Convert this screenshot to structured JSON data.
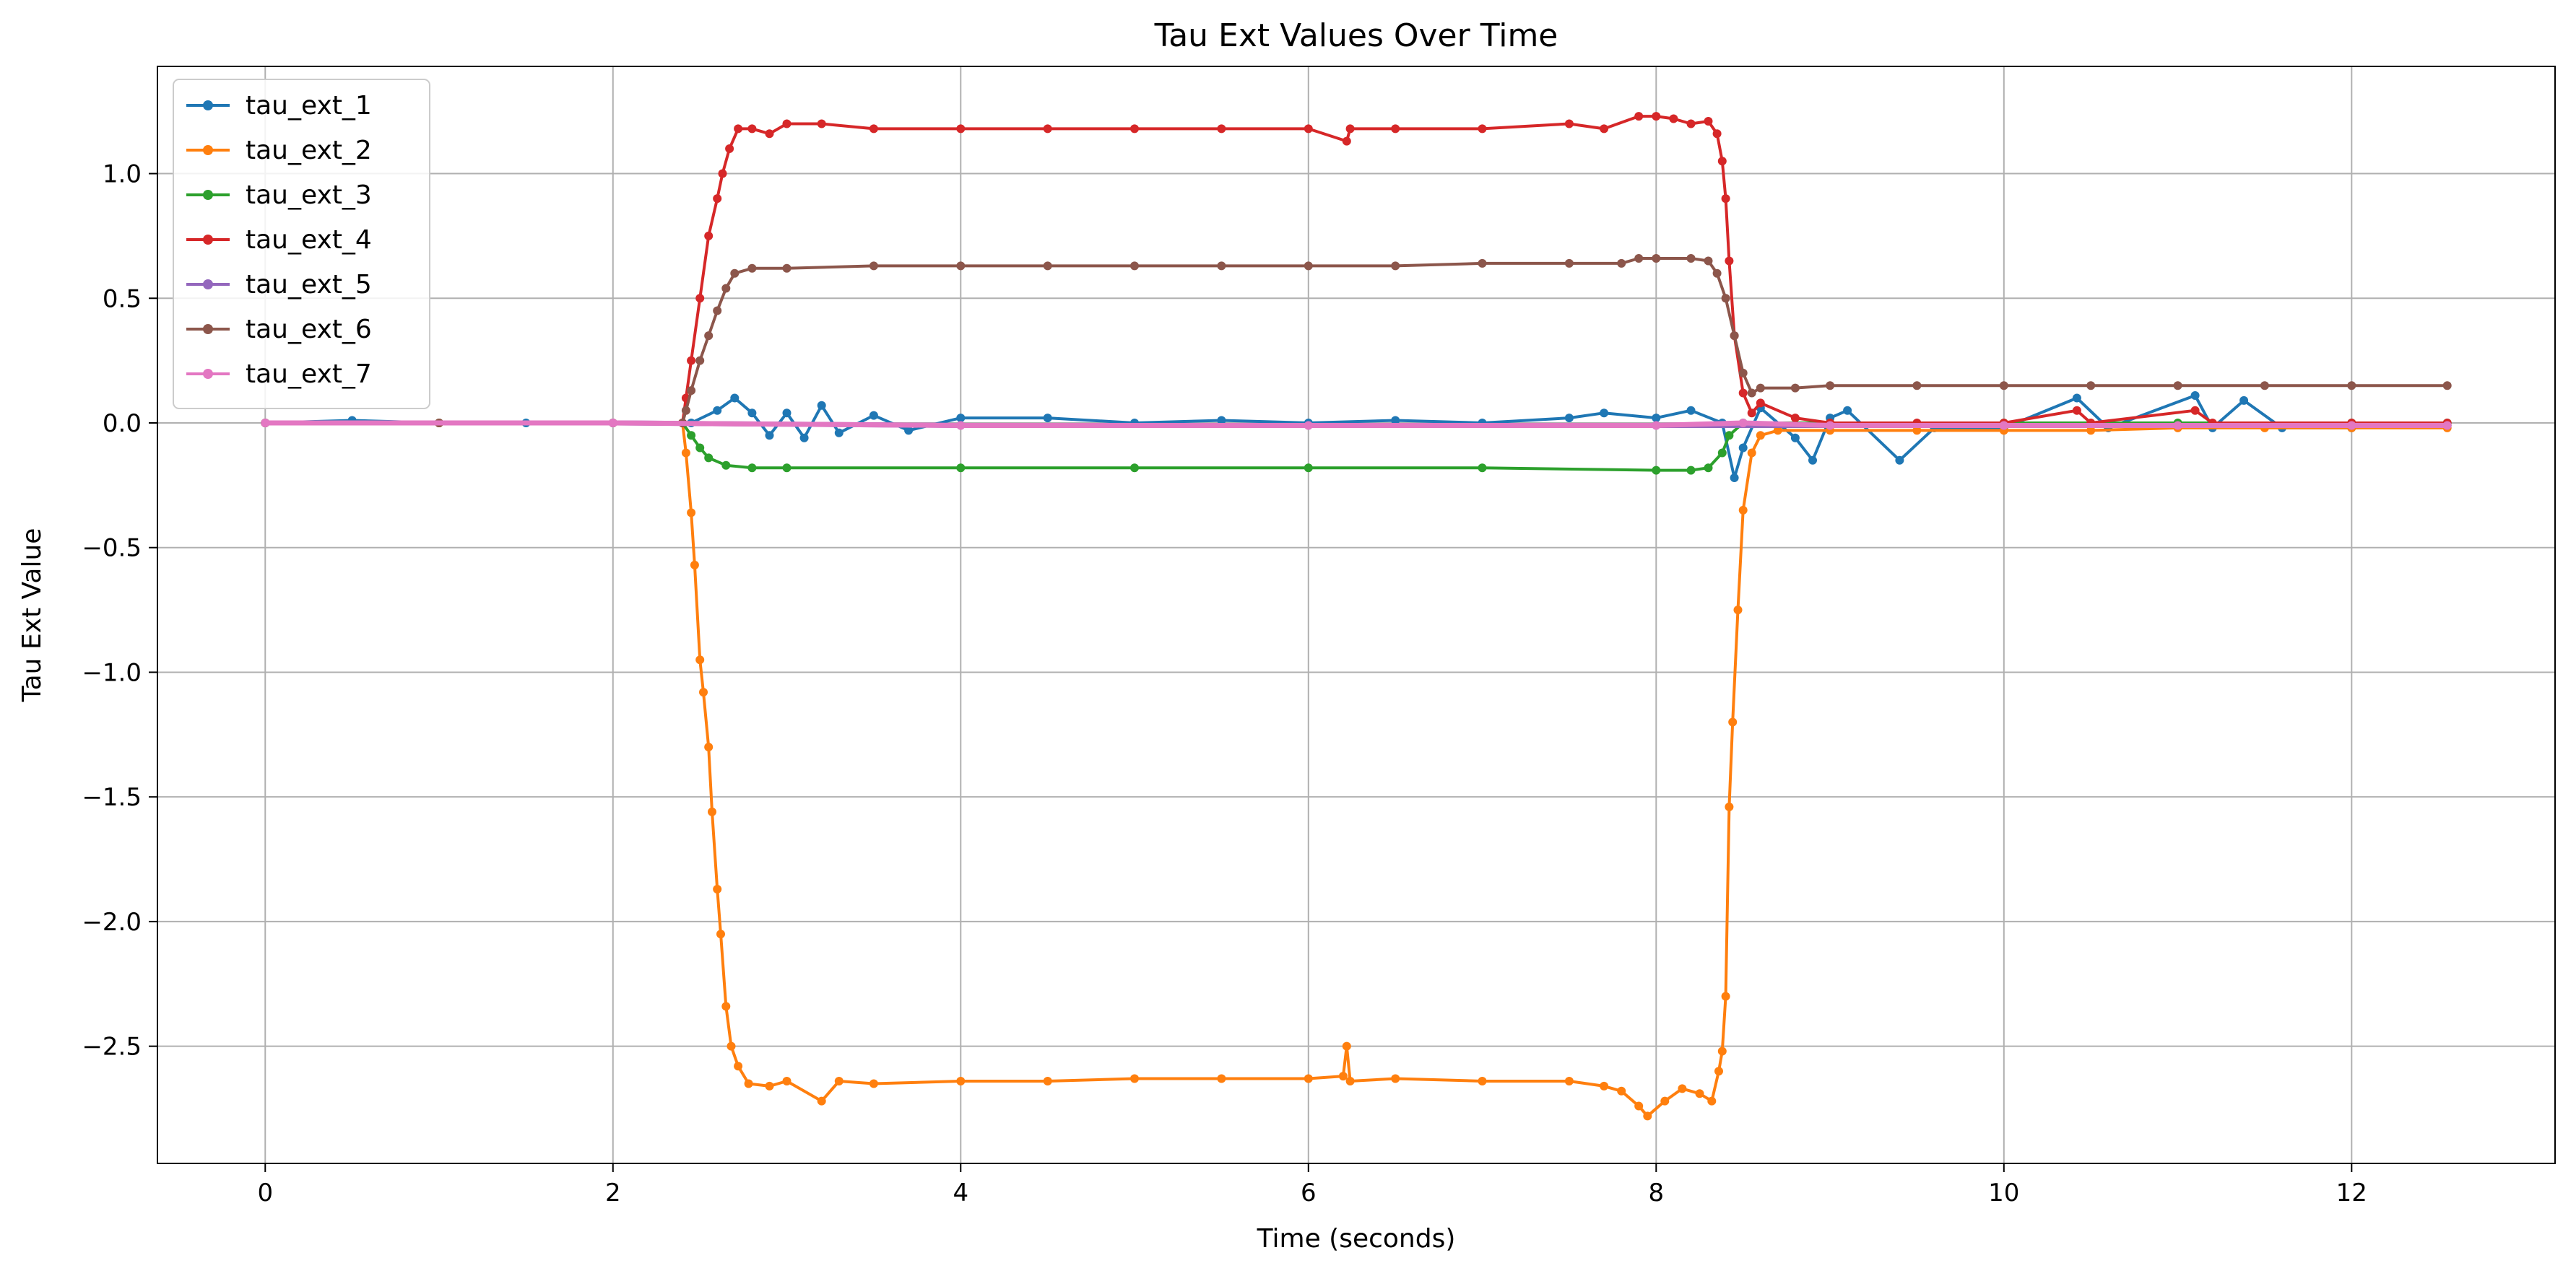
{
  "chart_data": {
    "type": "line",
    "title": "Tau Ext Values Over Time",
    "xlabel": "Time (seconds)",
    "ylabel": "Tau Ext Value",
    "xlim": [
      -0.62,
      13.17
    ],
    "ylim": [
      -2.97,
      1.43
    ],
    "x_ticks": [
      0,
      2,
      4,
      6,
      8,
      10,
      12
    ],
    "x_tick_labels": [
      "0",
      "2",
      "4",
      "6",
      "8",
      "10",
      "12"
    ],
    "y_ticks": [
      1.0,
      0.5,
      0.0,
      -0.5,
      -1.0,
      -1.5,
      -2.0,
      -2.5
    ],
    "y_tick_labels": [
      "1.0",
      "0.5",
      "0.0",
      "−0.5",
      "−1.0",
      "−1.5",
      "−2.0",
      "−2.5"
    ],
    "grid": true,
    "legend_position": "top-left",
    "series": [
      {
        "name": "tau_ext_1",
        "color": "#1f77b4",
        "points": [
          [
            0,
            0
          ],
          [
            0.5,
            0.01
          ],
          [
            1,
            0.0
          ],
          [
            1.5,
            0.0
          ],
          [
            2,
            0.0
          ],
          [
            2.45,
            0.0
          ],
          [
            2.6,
            0.05
          ],
          [
            2.7,
            0.1
          ],
          [
            2.8,
            0.04
          ],
          [
            2.9,
            -0.05
          ],
          [
            3.0,
            0.04
          ],
          [
            3.1,
            -0.06
          ],
          [
            3.2,
            0.07
          ],
          [
            3.3,
            -0.04
          ],
          [
            3.5,
            0.03
          ],
          [
            3.7,
            -0.03
          ],
          [
            4,
            0.02
          ],
          [
            4.5,
            0.02
          ],
          [
            5,
            0.0
          ],
          [
            5.5,
            0.01
          ],
          [
            6,
            0.0
          ],
          [
            6.5,
            0.01
          ],
          [
            7,
            0.0
          ],
          [
            7.5,
            0.02
          ],
          [
            7.7,
            0.04
          ],
          [
            8,
            0.02
          ],
          [
            8.2,
            0.05
          ],
          [
            8.38,
            0.0
          ],
          [
            8.45,
            -0.22
          ],
          [
            8.5,
            -0.1
          ],
          [
            8.6,
            0.06
          ],
          [
            8.8,
            -0.06
          ],
          [
            8.9,
            -0.15
          ],
          [
            9.0,
            0.02
          ],
          [
            9.1,
            0.05
          ],
          [
            9.4,
            -0.15
          ],
          [
            9.6,
            -0.02
          ],
          [
            10,
            -0.02
          ],
          [
            10.42,
            0.1
          ],
          [
            10.6,
            -0.02
          ],
          [
            11.1,
            0.11
          ],
          [
            11.2,
            -0.02
          ],
          [
            11.38,
            0.09
          ],
          [
            11.6,
            -0.02
          ],
          [
            12,
            -0.02
          ],
          [
            12.55,
            -0.01
          ]
        ]
      },
      {
        "name": "tau_ext_2",
        "color": "#ff7f0e",
        "points": [
          [
            0,
            0
          ],
          [
            1,
            0.0
          ],
          [
            2,
            0.0
          ],
          [
            2.4,
            0.0
          ],
          [
            2.42,
            -0.12
          ],
          [
            2.45,
            -0.36
          ],
          [
            2.47,
            -0.57
          ],
          [
            2.5,
            -0.95
          ],
          [
            2.52,
            -1.08
          ],
          [
            2.55,
            -1.3
          ],
          [
            2.57,
            -1.56
          ],
          [
            2.6,
            -1.87
          ],
          [
            2.62,
            -2.05
          ],
          [
            2.65,
            -2.34
          ],
          [
            2.68,
            -2.5
          ],
          [
            2.72,
            -2.58
          ],
          [
            2.78,
            -2.65
          ],
          [
            2.9,
            -2.66
          ],
          [
            3.0,
            -2.64
          ],
          [
            3.2,
            -2.72
          ],
          [
            3.3,
            -2.64
          ],
          [
            3.5,
            -2.65
          ],
          [
            4.0,
            -2.64
          ],
          [
            4.5,
            -2.64
          ],
          [
            5.0,
            -2.63
          ],
          [
            5.5,
            -2.63
          ],
          [
            6.0,
            -2.63
          ],
          [
            6.2,
            -2.62
          ],
          [
            6.22,
            -2.5
          ],
          [
            6.24,
            -2.64
          ],
          [
            6.5,
            -2.63
          ],
          [
            7.0,
            -2.64
          ],
          [
            7.5,
            -2.64
          ],
          [
            7.7,
            -2.66
          ],
          [
            7.8,
            -2.68
          ],
          [
            7.9,
            -2.74
          ],
          [
            7.95,
            -2.78
          ],
          [
            8.05,
            -2.72
          ],
          [
            8.15,
            -2.67
          ],
          [
            8.25,
            -2.69
          ],
          [
            8.32,
            -2.72
          ],
          [
            8.36,
            -2.6
          ],
          [
            8.38,
            -2.52
          ],
          [
            8.4,
            -2.3
          ],
          [
            8.42,
            -1.54
          ],
          [
            8.44,
            -1.2
          ],
          [
            8.47,
            -0.75
          ],
          [
            8.5,
            -0.35
          ],
          [
            8.55,
            -0.12
          ],
          [
            8.6,
            -0.05
          ],
          [
            8.7,
            -0.03
          ],
          [
            9.0,
            -0.03
          ],
          [
            9.5,
            -0.03
          ],
          [
            10.0,
            -0.03
          ],
          [
            10.5,
            -0.03
          ],
          [
            11.0,
            -0.02
          ],
          [
            11.5,
            -0.02
          ],
          [
            12.0,
            -0.02
          ],
          [
            12.55,
            -0.02
          ]
        ]
      },
      {
        "name": "tau_ext_3",
        "color": "#2ca02c",
        "points": [
          [
            0,
            0
          ],
          [
            1,
            0.0
          ],
          [
            2,
            0.0
          ],
          [
            2.4,
            0.0
          ],
          [
            2.45,
            -0.05
          ],
          [
            2.5,
            -0.1
          ],
          [
            2.55,
            -0.14
          ],
          [
            2.65,
            -0.17
          ],
          [
            2.8,
            -0.18
          ],
          [
            3.0,
            -0.18
          ],
          [
            4,
            -0.18
          ],
          [
            5,
            -0.18
          ],
          [
            6,
            -0.18
          ],
          [
            7,
            -0.18
          ],
          [
            8.0,
            -0.19
          ],
          [
            8.2,
            -0.19
          ],
          [
            8.3,
            -0.18
          ],
          [
            8.38,
            -0.12
          ],
          [
            8.42,
            -0.05
          ],
          [
            8.5,
            0.0
          ],
          [
            9,
            0.0
          ],
          [
            10,
            0.0
          ],
          [
            11,
            0.0
          ],
          [
            12,
            0.0
          ],
          [
            12.55,
            0.0
          ]
        ]
      },
      {
        "name": "tau_ext_4",
        "color": "#d62728",
        "points": [
          [
            0,
            0
          ],
          [
            1,
            0.0
          ],
          [
            2,
            0.0
          ],
          [
            2.4,
            0.0
          ],
          [
            2.42,
            0.1
          ],
          [
            2.45,
            0.25
          ],
          [
            2.5,
            0.5
          ],
          [
            2.55,
            0.75
          ],
          [
            2.6,
            0.9
          ],
          [
            2.63,
            1.0
          ],
          [
            2.67,
            1.1
          ],
          [
            2.72,
            1.18
          ],
          [
            2.8,
            1.18
          ],
          [
            2.9,
            1.16
          ],
          [
            3.0,
            1.2
          ],
          [
            3.2,
            1.2
          ],
          [
            3.5,
            1.18
          ],
          [
            4,
            1.18
          ],
          [
            4.5,
            1.18
          ],
          [
            5,
            1.18
          ],
          [
            5.5,
            1.18
          ],
          [
            6,
            1.18
          ],
          [
            6.22,
            1.13
          ],
          [
            6.24,
            1.18
          ],
          [
            6.5,
            1.18
          ],
          [
            7,
            1.18
          ],
          [
            7.5,
            1.2
          ],
          [
            7.7,
            1.18
          ],
          [
            7.9,
            1.23
          ],
          [
            8.0,
            1.23
          ],
          [
            8.1,
            1.22
          ],
          [
            8.2,
            1.2
          ],
          [
            8.3,
            1.21
          ],
          [
            8.35,
            1.16
          ],
          [
            8.38,
            1.05
          ],
          [
            8.4,
            0.9
          ],
          [
            8.42,
            0.65
          ],
          [
            8.45,
            0.35
          ],
          [
            8.5,
            0.12
          ],
          [
            8.55,
            0.04
          ],
          [
            8.6,
            0.08
          ],
          [
            8.8,
            0.02
          ],
          [
            9.0,
            0.0
          ],
          [
            9.5,
            0.0
          ],
          [
            10,
            0.0
          ],
          [
            10.42,
            0.05
          ],
          [
            10.5,
            0.0
          ],
          [
            11.1,
            0.05
          ],
          [
            11.2,
            0.0
          ],
          [
            12,
            0.0
          ],
          [
            12.55,
            0.0
          ]
        ]
      },
      {
        "name": "tau_ext_5",
        "color": "#9467bd",
        "points": [
          [
            0,
            0
          ],
          [
            2,
            0.0
          ],
          [
            4,
            -0.01
          ],
          [
            6,
            -0.01
          ],
          [
            8,
            -0.01
          ],
          [
            10,
            -0.01
          ],
          [
            12,
            -0.01
          ],
          [
            12.55,
            -0.01
          ]
        ]
      },
      {
        "name": "tau_ext_6",
        "color": "#8c564b",
        "points": [
          [
            0,
            0
          ],
          [
            1,
            0.0
          ],
          [
            2,
            0.0
          ],
          [
            2.4,
            0.0
          ],
          [
            2.42,
            0.05
          ],
          [
            2.45,
            0.13
          ],
          [
            2.5,
            0.25
          ],
          [
            2.55,
            0.35
          ],
          [
            2.6,
            0.45
          ],
          [
            2.65,
            0.54
          ],
          [
            2.7,
            0.6
          ],
          [
            2.8,
            0.62
          ],
          [
            3.0,
            0.62
          ],
          [
            3.5,
            0.63
          ],
          [
            4,
            0.63
          ],
          [
            4.5,
            0.63
          ],
          [
            5,
            0.63
          ],
          [
            5.5,
            0.63
          ],
          [
            6,
            0.63
          ],
          [
            6.5,
            0.63
          ],
          [
            7,
            0.64
          ],
          [
            7.5,
            0.64
          ],
          [
            7.8,
            0.64
          ],
          [
            7.9,
            0.66
          ],
          [
            8.0,
            0.66
          ],
          [
            8.2,
            0.66
          ],
          [
            8.3,
            0.65
          ],
          [
            8.35,
            0.6
          ],
          [
            8.4,
            0.5
          ],
          [
            8.45,
            0.35
          ],
          [
            8.5,
            0.2
          ],
          [
            8.55,
            0.12
          ],
          [
            8.6,
            0.14
          ],
          [
            8.8,
            0.14
          ],
          [
            9.0,
            0.15
          ],
          [
            9.5,
            0.15
          ],
          [
            10,
            0.15
          ],
          [
            10.5,
            0.15
          ],
          [
            11,
            0.15
          ],
          [
            11.5,
            0.15
          ],
          [
            12,
            0.15
          ],
          [
            12.55,
            0.15
          ]
        ]
      },
      {
        "name": "tau_ext_7",
        "color": "#e377c2",
        "points": [
          [
            0,
            0
          ],
          [
            2,
            0.0
          ],
          [
            4,
            -0.01
          ],
          [
            6,
            -0.01
          ],
          [
            8,
            -0.01
          ],
          [
            8.5,
            0.0
          ],
          [
            9,
            -0.01
          ],
          [
            10,
            -0.01
          ],
          [
            11,
            -0.01
          ],
          [
            12,
            -0.01
          ],
          [
            12.55,
            -0.01
          ]
        ]
      }
    ]
  }
}
